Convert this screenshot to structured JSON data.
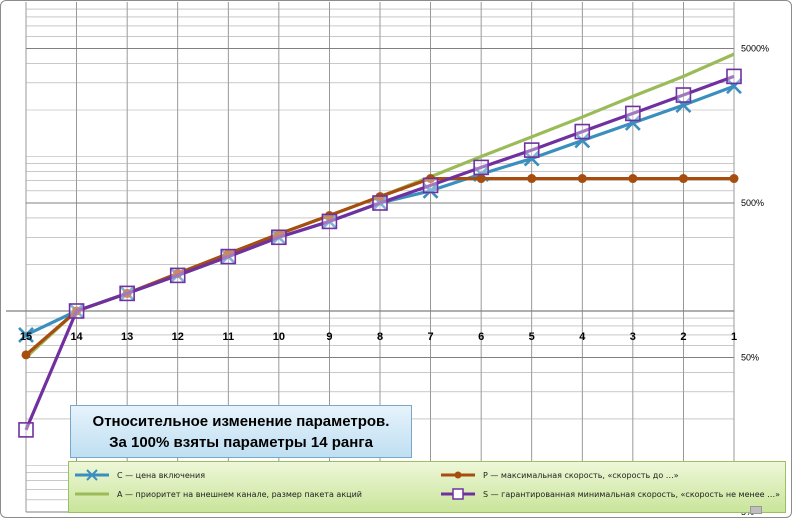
{
  "chart_data": {
    "type": "line",
    "title": "Относительное изменение параметров.",
    "subtitle": "За 100% взяты параметры  14 ранга",
    "x_categories": [
      "15",
      "14",
      "13",
      "12",
      "11",
      "10",
      "9",
      "8",
      "7",
      "6",
      "5",
      "4",
      "3",
      "2",
      "1"
    ],
    "y_scale": "log",
    "ylim": [
      5,
      10000
    ],
    "y_tick_labels": [
      {
        "label": "5000%",
        "value": 5000
      },
      {
        "label": "500%",
        "value": 500
      },
      {
        "label": "50%",
        "value": 50
      },
      {
        "label": "5%",
        "value": 5
      }
    ],
    "x_axis_value": 100,
    "grid": true,
    "legend_position": "bottom",
    "series": [
      {
        "key": "C",
        "name": "C — цена включения",
        "color": "#3a8fbf",
        "marker": "x",
        "values": [
          70,
          100,
          130,
          170,
          225,
          300,
          380,
          500,
          600,
          770,
          970,
          1270,
          1650,
          2150,
          2850
        ]
      },
      {
        "key": "P",
        "name": "P — максимальная скорость, «скорость до …»",
        "color": "#a64e10",
        "marker": "circle",
        "values": [
          52,
          100,
          130,
          175,
          235,
          315,
          415,
          550,
          720,
          720,
          720,
          720,
          720,
          720,
          720
        ]
      },
      {
        "key": "A",
        "name": "A — приоритет на внешнем канале, размер пакета акций",
        "color": "#9bbb59",
        "marker": "none",
        "values": [
          50,
          100,
          130,
          175,
          235,
          315,
          415,
          550,
          740,
          1000,
          1340,
          1800,
          2450,
          3300,
          4600
        ]
      },
      {
        "key": "S",
        "name": "S — гарантированная минимальная скорость, «скорость не менее …»",
        "color": "#7030a0",
        "marker": "square",
        "values": [
          17,
          100,
          130,
          170,
          225,
          300,
          380,
          500,
          650,
          850,
          1100,
          1450,
          1900,
          2500,
          3300
        ]
      }
    ]
  }
}
